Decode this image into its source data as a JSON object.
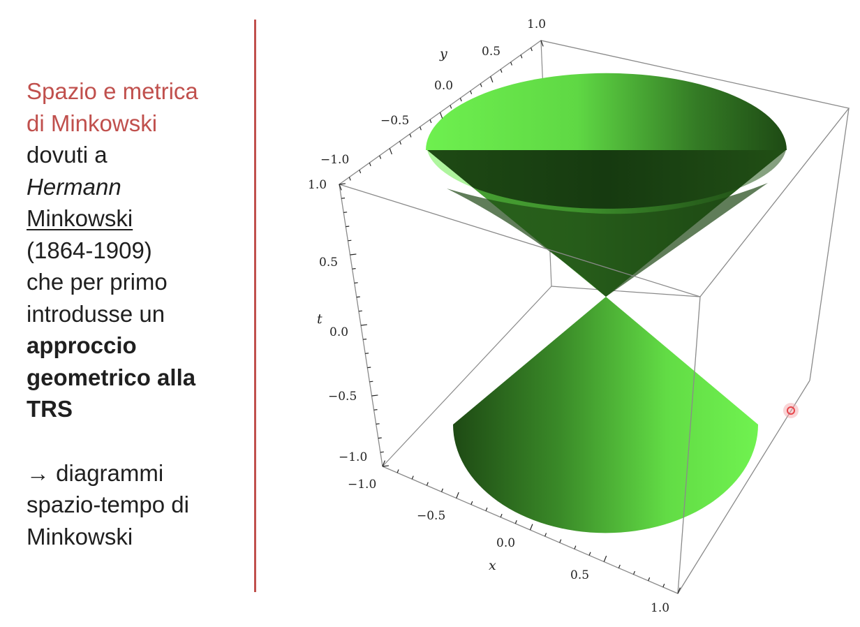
{
  "slide": {
    "title_line1": "Spazio e metrica",
    "title_line2": "di Minkowski",
    "line_dovuti": "dovuti a",
    "name_first": "Hermann",
    "name_last": "Minkowski",
    "years": "(1864-1909)",
    "line_che": "che per primo",
    "line_introdusse": "introdusse un",
    "bold_1": "approccio",
    "bold_2": "geometrico alla",
    "bold_3": "TRS",
    "arrow": "→",
    "arrow_text": " diagrammi",
    "line_spazio": "spazio-tempo di",
    "line_last": "Minkowski"
  },
  "colors": {
    "accent": "#c0504d",
    "cone_light": "#6ef04f",
    "cone_dark": "#1e4a14",
    "box_line": "#7a7a7a",
    "pointer": "#e8454a"
  },
  "chart_data": {
    "type": "surface3d",
    "surface": "light cone t^2 = x^2 + y^2",
    "axes": {
      "x": {
        "label": "x",
        "range": [
          -1.0,
          1.0
        ],
        "ticks": [
          "−1.0",
          "−0.5",
          "0.0",
          "0.5",
          "1.0"
        ]
      },
      "y": {
        "label": "y",
        "range": [
          -1.0,
          1.0
        ],
        "ticks": [
          "−1.0",
          "−0.5",
          "0.0",
          "0.5",
          "1.0"
        ]
      },
      "t": {
        "label": "t",
        "range": [
          -1.0,
          1.0
        ],
        "ticks": [
          "−1.0",
          "−0.5",
          "0.0",
          "0.5",
          "1.0"
        ]
      }
    }
  }
}
